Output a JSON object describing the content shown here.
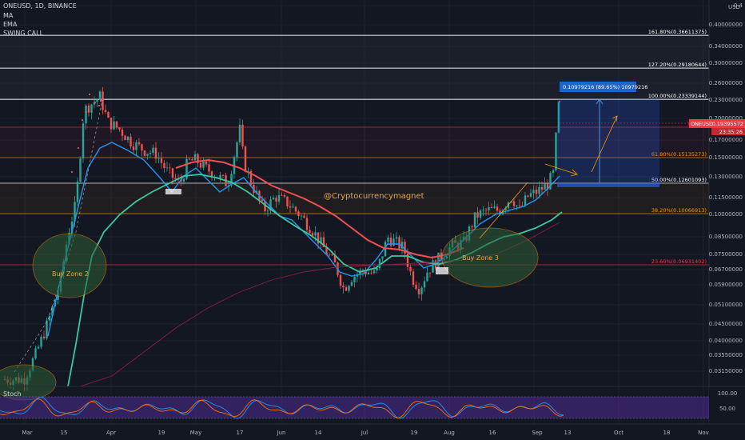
{
  "header": {
    "symbol_line": "ONEUSD, 1D, BINANCE",
    "indicators": [
      "MA",
      "EMA",
      "SWING CALL"
    ]
  },
  "stoch": {
    "label": "Stoch",
    "ticks": [
      "100.00",
      "50.00"
    ]
  },
  "price_scale": {
    "currency": "USD",
    "ticks": [
      "0.4",
      "0.40000000",
      "0.34000000",
      "0.30000000",
      "0.26000000",
      "0.23000000",
      "0.20000000",
      "0.17000000",
      "0.15000000",
      "0.13000000",
      "0.11500000",
      "0.10000000",
      "0.08500000",
      "0.07500000",
      "0.06700000",
      "0.05900000",
      "0.05100000",
      "0.04500000",
      "0.04000000",
      "0.03550000",
      "0.03150000"
    ]
  },
  "time_axis": [
    "Mar",
    "15",
    "Apr",
    "19",
    "May",
    "17",
    "Jun",
    "14",
    "Jul",
    "19",
    "Aug",
    "16",
    "Sep",
    "13",
    "Oct",
    "18",
    "Nov"
  ],
  "fib_levels": [
    {
      "label": "161.80%(0.36611375)",
      "price": 0.36611375,
      "color": "#ffffff"
    },
    {
      "label": "127.20%(0.29180644)",
      "price": 0.29180644,
      "color": "#ffffff"
    },
    {
      "label": "100.00%(0.23339144)",
      "price": 0.23339144,
      "color": "#ffffff"
    },
    {
      "label": "78.60%",
      "price": 0.1876,
      "color": "#f23645"
    },
    {
      "label": "61.80%(0.15135273)",
      "price": 0.15135273,
      "color": "#ff9800"
    },
    {
      "label": "50.00%(0.12601093)",
      "price": 0.12601093,
      "color": "#ffffff"
    },
    {
      "label": "38.20%(0.10066913)",
      "price": 0.10066913,
      "color": "#ff9800"
    },
    {
      "label": "23.60%(0.06931402)",
      "price": 0.06931402,
      "color": "#f23645"
    }
  ],
  "current_price": {
    "symbol": "ONEUSD",
    "value": "0.19395572",
    "countdown": "23:35:26"
  },
  "measure_box": {
    "label": "0.10979216 (89.65%) 10979216"
  },
  "watermark": "@Cryptocurrencymagnet",
  "zones": [
    "Buy Zone 2",
    "Buy Zone 3"
  ],
  "colors": {
    "up": "#26a69a",
    "down": "#ef5350",
    "ema_teal": "#38c9a0",
    "ma_blue": "#2196f3",
    "ma_red": "#f05050",
    "orange": "#ff9800"
  },
  "chart_data": {
    "type": "candlestick",
    "scale": "log",
    "ylim": [
      0.028,
      0.42
    ],
    "x": [
      "Mar",
      "15",
      "Apr",
      "19",
      "May",
      "17",
      "Jun",
      "14",
      "Jul",
      "19",
      "Aug",
      "16",
      "Sep"
    ],
    "close": [
      0.031,
      0.078,
      0.21,
      0.165,
      0.142,
      0.175,
      0.105,
      0.072,
      0.063,
      0.066,
      0.076,
      0.102,
      0.194
    ],
    "high": [
      0.034,
      0.09,
      0.235,
      0.18,
      0.16,
      0.19,
      0.12,
      0.085,
      0.07,
      0.075,
      0.082,
      0.11,
      0.235
    ],
    "low": [
      0.029,
      0.05,
      0.15,
      0.12,
      0.12,
      0.14,
      0.09,
      0.055,
      0.056,
      0.058,
      0.07,
      0.095,
      0.12
    ]
  }
}
